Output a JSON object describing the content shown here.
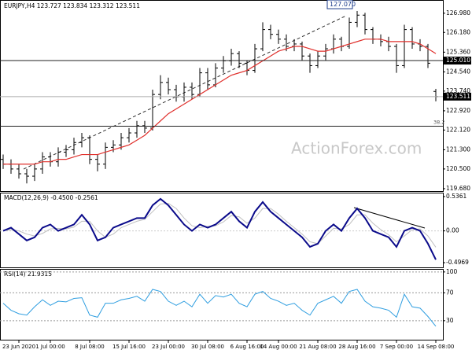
{
  "chart_data": {
    "type": "ohlc",
    "title": "EURJPY,H4 123.727 123.834 123.312 123.511",
    "watermark": "ActionForex.com",
    "categories": [
      null,
      null,
      "23 Jun 2020",
      null,
      null,
      null,
      "1 Jul 00:00",
      null,
      null,
      null,
      null,
      "8 Jul 08:00",
      null,
      null,
      null,
      null,
      "15 Jul 16:00",
      null,
      null,
      null,
      null,
      "23 Jul 00:00",
      null,
      null,
      null,
      null,
      "30 Jul 08:00",
      null,
      null,
      null,
      null,
      "6 Aug 16:00",
      null,
      null,
      null,
      "14 Aug 00:00",
      null,
      null,
      null,
      null,
      "21 Aug 08:00",
      null,
      null,
      null,
      null,
      "28 Aug 16:00",
      null,
      null,
      null,
      null,
      "7 Sep 00:00",
      null,
      null,
      null,
      null,
      "14 Sep 08:00"
    ],
    "bars": [
      [
        120.9,
        121.1,
        120.5,
        120.7
      ],
      [
        120.7,
        120.9,
        120.3,
        120.5
      ],
      [
        120.5,
        120.7,
        120.1,
        120.3
      ],
      [
        120.3,
        120.5,
        119.9,
        120.2
      ],
      [
        120.2,
        120.7,
        120.0,
        120.5
      ],
      [
        120.5,
        121.2,
        120.3,
        121.0
      ],
      [
        121.0,
        121.2,
        120.6,
        120.8
      ],
      [
        120.8,
        121.4,
        120.6,
        121.2
      ],
      [
        121.2,
        121.5,
        121.0,
        121.3
      ],
      [
        121.3,
        121.8,
        121.1,
        121.6
      ],
      [
        121.6,
        122.0,
        121.4,
        121.8
      ],
      [
        121.8,
        121.9,
        120.7,
        120.9
      ],
      [
        120.9,
        121.1,
        120.4,
        120.7
      ],
      [
        120.7,
        121.6,
        120.5,
        121.4
      ],
      [
        121.4,
        121.7,
        121.2,
        121.5
      ],
      [
        121.5,
        122.0,
        121.3,
        121.8
      ],
      [
        121.8,
        122.2,
        121.6,
        122.0
      ],
      [
        122.0,
        122.5,
        121.8,
        122.3
      ],
      [
        122.3,
        122.5,
        122.0,
        122.2
      ],
      [
        122.2,
        123.8,
        122.1,
        123.6
      ],
      [
        123.6,
        124.4,
        123.4,
        124.1
      ],
      [
        124.1,
        124.3,
        123.6,
        123.8
      ],
      [
        123.8,
        124.0,
        123.3,
        123.5
      ],
      [
        123.5,
        124.1,
        123.3,
        123.9
      ],
      [
        123.9,
        124.1,
        123.4,
        123.6
      ],
      [
        123.6,
        124.7,
        123.5,
        124.5
      ],
      [
        124.5,
        124.7,
        123.8,
        124.0
      ],
      [
        124.0,
        124.9,
        123.9,
        124.7
      ],
      [
        124.7,
        125.2,
        124.5,
        125.0
      ],
      [
        125.0,
        125.5,
        124.8,
        125.3
      ],
      [
        125.3,
        125.4,
        124.7,
        124.9
      ],
      [
        124.9,
        125.0,
        124.4,
        124.6
      ],
      [
        124.6,
        125.7,
        124.5,
        125.5
      ],
      [
        125.5,
        126.6,
        125.4,
        126.3
      ],
      [
        126.3,
        126.5,
        125.9,
        126.1
      ],
      [
        126.1,
        126.3,
        125.7,
        125.9
      ],
      [
        125.9,
        126.1,
        125.4,
        125.6
      ],
      [
        125.6,
        125.9,
        125.4,
        125.7
      ],
      [
        125.7,
        125.8,
        125.0,
        125.2
      ],
      [
        125.2,
        125.3,
        124.5,
        124.8
      ],
      [
        124.8,
        125.4,
        124.7,
        125.2
      ],
      [
        125.2,
        125.7,
        125.0,
        125.5
      ],
      [
        125.5,
        126.1,
        125.3,
        125.9
      ],
      [
        125.9,
        126.0,
        125.4,
        125.6
      ],
      [
        125.6,
        126.8,
        125.5,
        126.6
      ],
      [
        126.6,
        127.07,
        126.4,
        126.9
      ],
      [
        126.9,
        127.0,
        126.1,
        126.3
      ],
      [
        126.3,
        126.4,
        125.7,
        125.9
      ],
      [
        125.9,
        126.1,
        125.6,
        125.8
      ],
      [
        125.8,
        126.0,
        125.4,
        125.6
      ],
      [
        125.6,
        125.7,
        124.5,
        124.8
      ],
      [
        124.8,
        126.5,
        124.7,
        126.3
      ],
      [
        126.3,
        126.4,
        125.5,
        125.7
      ],
      [
        125.7,
        125.9,
        125.4,
        125.6
      ],
      [
        125.6,
        125.7,
        124.7,
        124.9
      ],
      [
        123.727,
        123.834,
        123.312,
        123.511
      ]
    ],
    "bar_color": "#000000",
    "ma": {
      "color": "#e0302c",
      "values": [
        120.7,
        120.7,
        120.7,
        120.7,
        120.7,
        120.8,
        120.8,
        120.9,
        120.9,
        121.0,
        121.1,
        121.1,
        121.1,
        121.2,
        121.3,
        121.4,
        121.5,
        121.7,
        121.9,
        122.2,
        122.5,
        122.8,
        123.0,
        123.2,
        123.4,
        123.6,
        123.8,
        124.0,
        124.2,
        124.4,
        124.5,
        124.6,
        124.8,
        125.0,
        125.2,
        125.4,
        125.5,
        125.6,
        125.6,
        125.5,
        125.4,
        125.4,
        125.5,
        125.6,
        125.7,
        125.8,
        125.9,
        125.9,
        125.9,
        125.8,
        125.8,
        125.8,
        125.8,
        125.7,
        125.5,
        125.3
      ]
    },
    "ylim": [
      119.58,
      127.53
    ],
    "yticks": [
      {
        "value": 126.98,
        "label": "126.980"
      },
      {
        "value": 126.18,
        "label": "126.180"
      },
      {
        "value": 125.36,
        "label": "125.360"
      },
      {
        "value": 124.54,
        "label": "124.540"
      },
      {
        "value": 123.74,
        "label": "123.740"
      },
      {
        "value": 122.92,
        "label": "122.920"
      },
      {
        "value": 122.12,
        "label": "122.120"
      },
      {
        "value": 121.3,
        "label": "121.300"
      },
      {
        "value": 120.5,
        "label": "120.500"
      },
      {
        "value": 119.68,
        "label": "119.680"
      }
    ],
    "levels": [
      {
        "value": 125.01,
        "label": "125.010"
      },
      {
        "value": 123.511,
        "label": "123.511"
      }
    ],
    "fib": {
      "value": 122.28,
      "label": "38.2"
    },
    "peak": {
      "index": 45,
      "value": 127.07,
      "label": "127.070"
    },
    "macd": {
      "title": "MACD(12,26,9) -0.4500 -0.2561",
      "ylim": [
        -0.57,
        0.585
      ],
      "yticks": [
        0.5361,
        {
          "value": 0,
          "label": "0.00"
        },
        -0.4969
      ],
      "series": [
        {
          "color": "#c0c0c0",
          "values": [
            0.0,
            0.02,
            0.0,
            -0.05,
            -0.08,
            -0.04,
            0.03,
            0.04,
            0.03,
            0.06,
            0.15,
            0.15,
            0.0,
            -0.1,
            -0.05,
            0.05,
            0.1,
            0.15,
            0.18,
            0.3,
            0.42,
            0.43,
            0.35,
            0.2,
            0.08,
            0.05,
            0.07,
            0.08,
            0.14,
            0.24,
            0.22,
            0.12,
            0.2,
            0.35,
            0.35,
            0.26,
            0.15,
            0.05,
            -0.05,
            -0.17,
            -0.2,
            -0.08,
            0.04,
            0.03,
            0.1,
            0.25,
            0.25,
            0.12,
            0.02,
            -0.06,
            -0.17,
            -0.08,
            0.02,
            0.03,
            -0.08,
            -0.2561
          ]
        },
        {
          "color": "#0a0a8a",
          "values": [
            0.0,
            0.05,
            -0.05,
            -0.15,
            -0.1,
            0.05,
            0.1,
            0.0,
            0.05,
            0.1,
            0.25,
            0.1,
            -0.15,
            -0.1,
            0.05,
            0.1,
            0.15,
            0.2,
            0.2,
            0.4,
            0.5,
            0.4,
            0.25,
            0.1,
            0.0,
            0.1,
            0.05,
            0.1,
            0.2,
            0.3,
            0.15,
            0.05,
            0.3,
            0.45,
            0.3,
            0.2,
            0.1,
            0.0,
            -0.1,
            -0.25,
            -0.2,
            0.0,
            0.1,
            0.0,
            0.2,
            0.35,
            0.2,
            0.0,
            -0.05,
            -0.1,
            -0.25,
            0.0,
            0.05,
            0.0,
            -0.2,
            -0.45
          ]
        }
      ]
    },
    "rsi": {
      "title": "RSI(14) 21.9315",
      "ylim": [
        2.7,
        103.2
      ],
      "yticks": [
        100,
        70,
        30
      ],
      "color": "#2f9ee0",
      "values": [
        55,
        45,
        40,
        38,
        50,
        60,
        52,
        58,
        57,
        62,
        63,
        38,
        35,
        55,
        55,
        60,
        62,
        65,
        58,
        75,
        72,
        58,
        52,
        58,
        50,
        68,
        55,
        66,
        64,
        68,
        55,
        50,
        68,
        72,
        62,
        58,
        52,
        55,
        45,
        38,
        55,
        60,
        65,
        55,
        72,
        75,
        58,
        50,
        48,
        45,
        35,
        68,
        50,
        48,
        36,
        21.9315
      ]
    }
  }
}
